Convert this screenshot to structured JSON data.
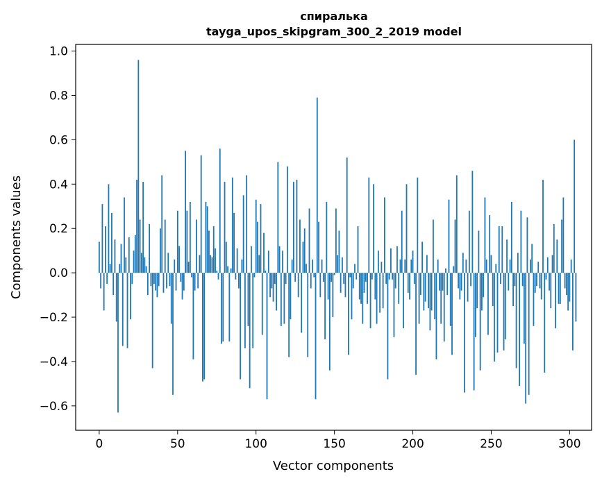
{
  "chart_data": {
    "type": "bar",
    "title": "спиралька",
    "subtitle": "tayga_upos_skipgram_300_2_2019 model",
    "xlabel": "Vector components",
    "ylabel": "Components values",
    "xlim": [
      -15,
      314
    ],
    "ylim": [
      -0.71,
      1.03
    ],
    "xticks": [
      0,
      50,
      100,
      150,
      200,
      250,
      300
    ],
    "xtick_labels": [
      "0",
      "50",
      "100",
      "150",
      "200",
      "250",
      "300"
    ],
    "yticks": [
      -0.6,
      -0.4,
      -0.2,
      0.0,
      0.2,
      0.4,
      0.6,
      0.8,
      1.0
    ],
    "ytick_labels": [
      "−0.6",
      "−0.4",
      "−0.2",
      "0.0",
      "0.2",
      "0.4",
      "0.6",
      "0.8",
      "1.0"
    ],
    "grid": false,
    "bar_color": "#1f77b4",
    "x_start": 0,
    "values": [
      0.14,
      -0.07,
      0.31,
      -0.17,
      0.21,
      -0.05,
      0.4,
      0.04,
      0.27,
      -0.1,
      0.15,
      -0.22,
      -0.63,
      0.04,
      0.13,
      -0.33,
      0.34,
      0.07,
      -0.34,
      0.16,
      -0.21,
      -0.05,
      0.1,
      0.17,
      0.42,
      0.96,
      0.24,
      0.09,
      0.41,
      0.07,
      0.03,
      -0.1,
      0.22,
      -0.06,
      -0.43,
      -0.05,
      -0.08,
      -0.11,
      -0.06,
      0.2,
      0.44,
      -0.09,
      0.24,
      -0.07,
      0.09,
      -0.06,
      -0.23,
      -0.55,
      0.06,
      -0.08,
      0.28,
      0.12,
      -0.04,
      -0.12,
      -0.08,
      0.55,
      0.28,
      0.05,
      0.32,
      -0.02,
      -0.39,
      -0.08,
      0.24,
      -0.07,
      0.08,
      0.53,
      -0.49,
      -0.48,
      0.32,
      0.3,
      0.19,
      0.08,
      0.07,
      0.21,
      0.11,
      0.01,
      -0.03,
      0.56,
      -0.32,
      -0.31,
      0.41,
      0.14,
      0.03,
      -0.31,
      0.02,
      0.43,
      0.27,
      -0.03,
      0.11,
      -0.07,
      -0.48,
      0.06,
      0.35,
      -0.34,
      0.44,
      -0.24,
      -0.52,
      0.12,
      -0.34,
      -0.02,
      0.33,
      0.23,
      0.08,
      0.31,
      -0.28,
      0.18,
      0.01,
      -0.57,
      0.1,
      -0.11,
      -0.07,
      -0.13,
      -0.05,
      -0.17,
      0.5,
      0.12,
      -0.24,
      0.1,
      -0.23,
      -0.05,
      0.48,
      -0.38,
      -0.21,
      0.06,
      0.41,
      -0.04,
      0.42,
      -0.11,
      0.24,
      -0.27,
      0.14,
      0.2,
      0.04,
      -0.38,
      0.29,
      -0.07,
      0.06,
      -0.02,
      -0.57,
      0.79,
      0.23,
      -0.11,
      0.06,
      -0.04,
      -0.3,
      0.32,
      -0.12,
      -0.44,
      -0.04,
      -0.2,
      -0.01,
      0.29,
      0.08,
      0.19,
      -0.09,
      0.07,
      -0.05,
      -0.11,
      0.52,
      -0.37,
      -0.02,
      -0.21,
      -0.07,
      0.04,
      -0.03,
      0.21,
      -0.12,
      -0.14,
      -0.23,
      -0.09,
      -0.04,
      -0.14,
      0.43,
      -0.25,
      -0.03,
      0.4,
      -0.12,
      -0.23,
      0.1,
      -0.18,
      0.05,
      -0.16,
      0.34,
      -0.05,
      -0.48,
      -0.03,
      0.11,
      -0.03,
      -0.29,
      -0.07,
      0.12,
      -0.14,
      0.06,
      0.28,
      -0.25,
      0.06,
      0.4,
      -0.09,
      -0.12,
      0.06,
      0.1,
      -0.05,
      -0.46,
      0.43,
      -0.23,
      -0.1,
      0.14,
      -0.17,
      -0.13,
      0.08,
      -0.16,
      -0.26,
      -0.17,
      0.24,
      -0.21,
      -0.39,
      0.06,
      -0.08,
      -0.23,
      -0.08,
      -0.31,
      0.02,
      -0.1,
      0.33,
      -0.24,
      -0.37,
      0.03,
      0.24,
      0.44,
      -0.07,
      -0.12,
      -0.08,
      0.09,
      -0.54,
      0.06,
      -0.13,
      0.28,
      -0.06,
      0.46,
      -0.53,
      -0.29,
      -0.16,
      0.19,
      -0.44,
      -0.17,
      -0.11,
      0.34,
      0.06,
      -0.28,
      0.26,
      0.08,
      -0.15,
      -0.4,
      0.04,
      -0.36,
      0.21,
      -0.05,
      0.21,
      -0.35,
      -0.3,
      0.15,
      -0.08,
      0.06,
      0.32,
      -0.15,
      -0.06,
      -0.43,
      0.09,
      -0.51,
      0.28,
      -0.06,
      -0.32,
      -0.59,
      0.25,
      -0.55,
      0.06,
      0.13,
      -0.24,
      -0.09,
      -0.06,
      0.05,
      -0.07,
      -0.12,
      0.42,
      -0.45,
      -0.03,
      0.07,
      -0.08,
      -0.16,
      0.08,
      0.22,
      -0.25,
      0.15,
      -0.14,
      -0.14,
      0.24,
      0.34,
      -0.07,
      -0.1,
      -0.17,
      -0.13,
      0.06,
      -0.35,
      0.6,
      -0.22
    ]
  }
}
